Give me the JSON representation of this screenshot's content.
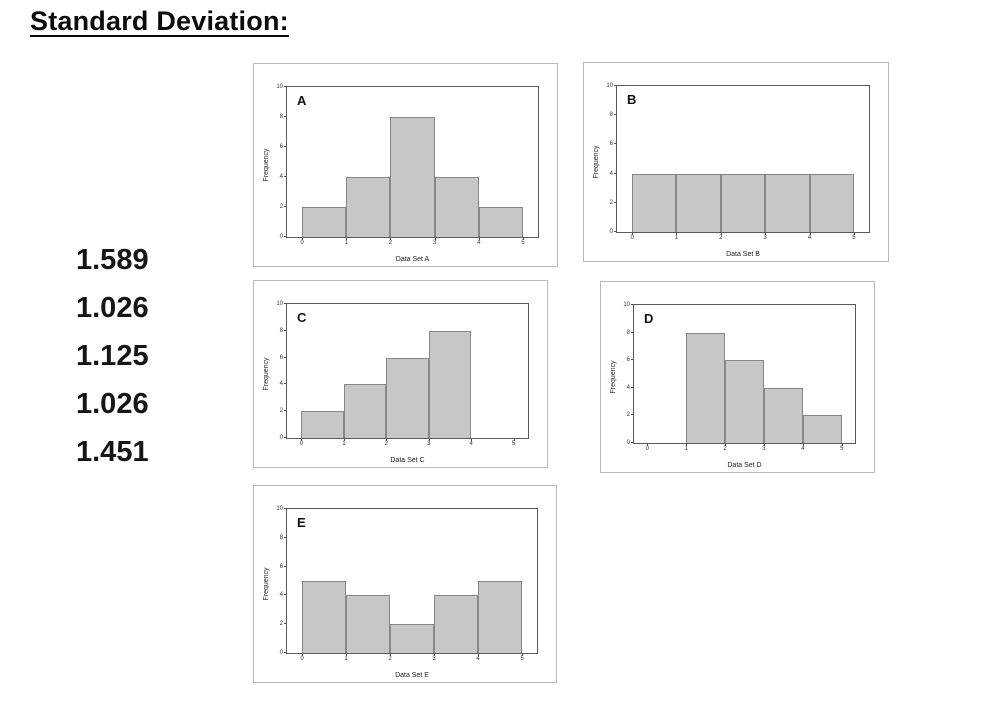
{
  "title": "Standard Deviation:",
  "sd_values": [
    "1.589",
    "1.026",
    "1.125",
    "1.026",
    "1.451"
  ],
  "colors": {
    "bar_fill": "#c7c7c7",
    "bar_border": "#878787",
    "plot_border": "#5a5a5a",
    "panel_border": "#b9b9b9",
    "text": "#111111"
  },
  "chart_data": [
    {
      "type": "bar",
      "title": "A",
      "xlabel": "Data Set A",
      "ylabel": "Frequency",
      "xlim": [
        0,
        5
      ],
      "ylim": [
        0,
        10
      ],
      "xticks": [
        0,
        1,
        2,
        3,
        4,
        5
      ],
      "yticks": [
        0,
        2,
        4,
        6,
        8,
        10
      ],
      "bins": [
        [
          0,
          1
        ],
        [
          1,
          2
        ],
        [
          2,
          3
        ],
        [
          3,
          4
        ],
        [
          4,
          5
        ]
      ],
      "values": [
        2,
        4,
        8,
        4,
        2
      ],
      "grid": false,
      "legend": "none"
    },
    {
      "type": "bar",
      "title": "B",
      "xlabel": "Data Set B",
      "ylabel": "Frequency",
      "xlim": [
        0,
        5
      ],
      "ylim": [
        0,
        10
      ],
      "xticks": [
        0,
        1,
        2,
        3,
        4,
        5
      ],
      "yticks": [
        0,
        2,
        4,
        6,
        8,
        10
      ],
      "bins": [
        [
          0,
          1
        ],
        [
          1,
          2
        ],
        [
          2,
          3
        ],
        [
          3,
          4
        ],
        [
          4,
          5
        ]
      ],
      "values": [
        4,
        4,
        4,
        4,
        4
      ],
      "grid": false,
      "legend": "none"
    },
    {
      "type": "bar",
      "title": "C",
      "xlabel": "Data Set C",
      "ylabel": "Frequency",
      "xlim": [
        0,
        5
      ],
      "ylim": [
        0,
        10
      ],
      "xticks": [
        0,
        1,
        2,
        3,
        4,
        5
      ],
      "yticks": [
        0,
        2,
        4,
        6,
        8,
        10
      ],
      "bins": [
        [
          0,
          1
        ],
        [
          1,
          2
        ],
        [
          2,
          3
        ],
        [
          3,
          4
        ]
      ],
      "values": [
        2,
        4,
        6,
        8
      ],
      "grid": false,
      "legend": "none"
    },
    {
      "type": "bar",
      "title": "D",
      "xlabel": "Data Set D",
      "ylabel": "Frequency",
      "xlim": [
        0,
        5
      ],
      "ylim": [
        0,
        10
      ],
      "xticks": [
        0,
        1,
        2,
        3,
        4,
        5
      ],
      "yticks": [
        0,
        2,
        4,
        6,
        8,
        10
      ],
      "bins": [
        [
          1,
          2
        ],
        [
          2,
          3
        ],
        [
          3,
          4
        ],
        [
          4,
          5
        ]
      ],
      "values": [
        8,
        6,
        4,
        2
      ],
      "grid": false,
      "legend": "none"
    },
    {
      "type": "bar",
      "title": "E",
      "xlabel": "Data Set E",
      "ylabel": "Frequency",
      "xlim": [
        0,
        5
      ],
      "ylim": [
        0,
        10
      ],
      "xticks": [
        0,
        1,
        2,
        3,
        4,
        5
      ],
      "yticks": [
        0,
        2,
        4,
        6,
        8,
        10
      ],
      "bins": [
        [
          0,
          1
        ],
        [
          1,
          2
        ],
        [
          2,
          3
        ],
        [
          3,
          4
        ],
        [
          4,
          5
        ]
      ],
      "values": [
        5,
        4,
        2,
        4,
        5
      ],
      "grid": false,
      "legend": "none"
    }
  ]
}
